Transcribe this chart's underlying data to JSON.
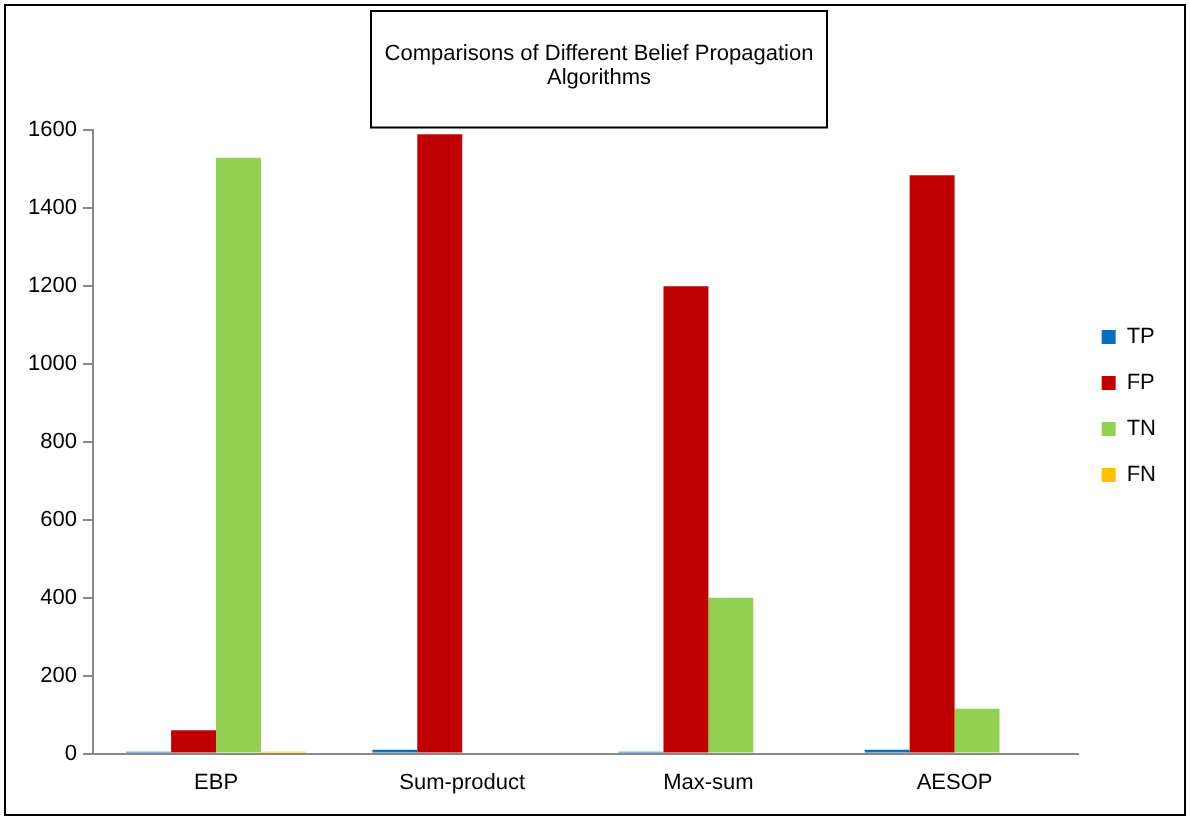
{
  "chart_data": {
    "type": "bar",
    "title": [
      "Comparisons of Different Belief Propagation",
      "Algorithms"
    ],
    "categories": [
      "EBP",
      "Sum-product",
      "Max-sum",
      "AESOP"
    ],
    "series": [
      {
        "name": "TP",
        "color": "#0070c0",
        "values": [
          5,
          10,
          5,
          10
        ]
      },
      {
        "name": "FP",
        "color": "#c00000",
        "values": [
          60,
          1590,
          1200,
          1485
        ]
      },
      {
        "name": "TN",
        "color": "#92d050",
        "values": [
          1530,
          0,
          400,
          115
        ]
      },
      {
        "name": "FN",
        "color": "#ffc000",
        "values": [
          5,
          0,
          null,
          0
        ]
      }
    ],
    "ylim": [
      0,
      1600
    ],
    "yticks": [
      0,
      200,
      400,
      600,
      800,
      1000,
      1200,
      1400,
      1600
    ],
    "grid": false,
    "legend": "right"
  }
}
